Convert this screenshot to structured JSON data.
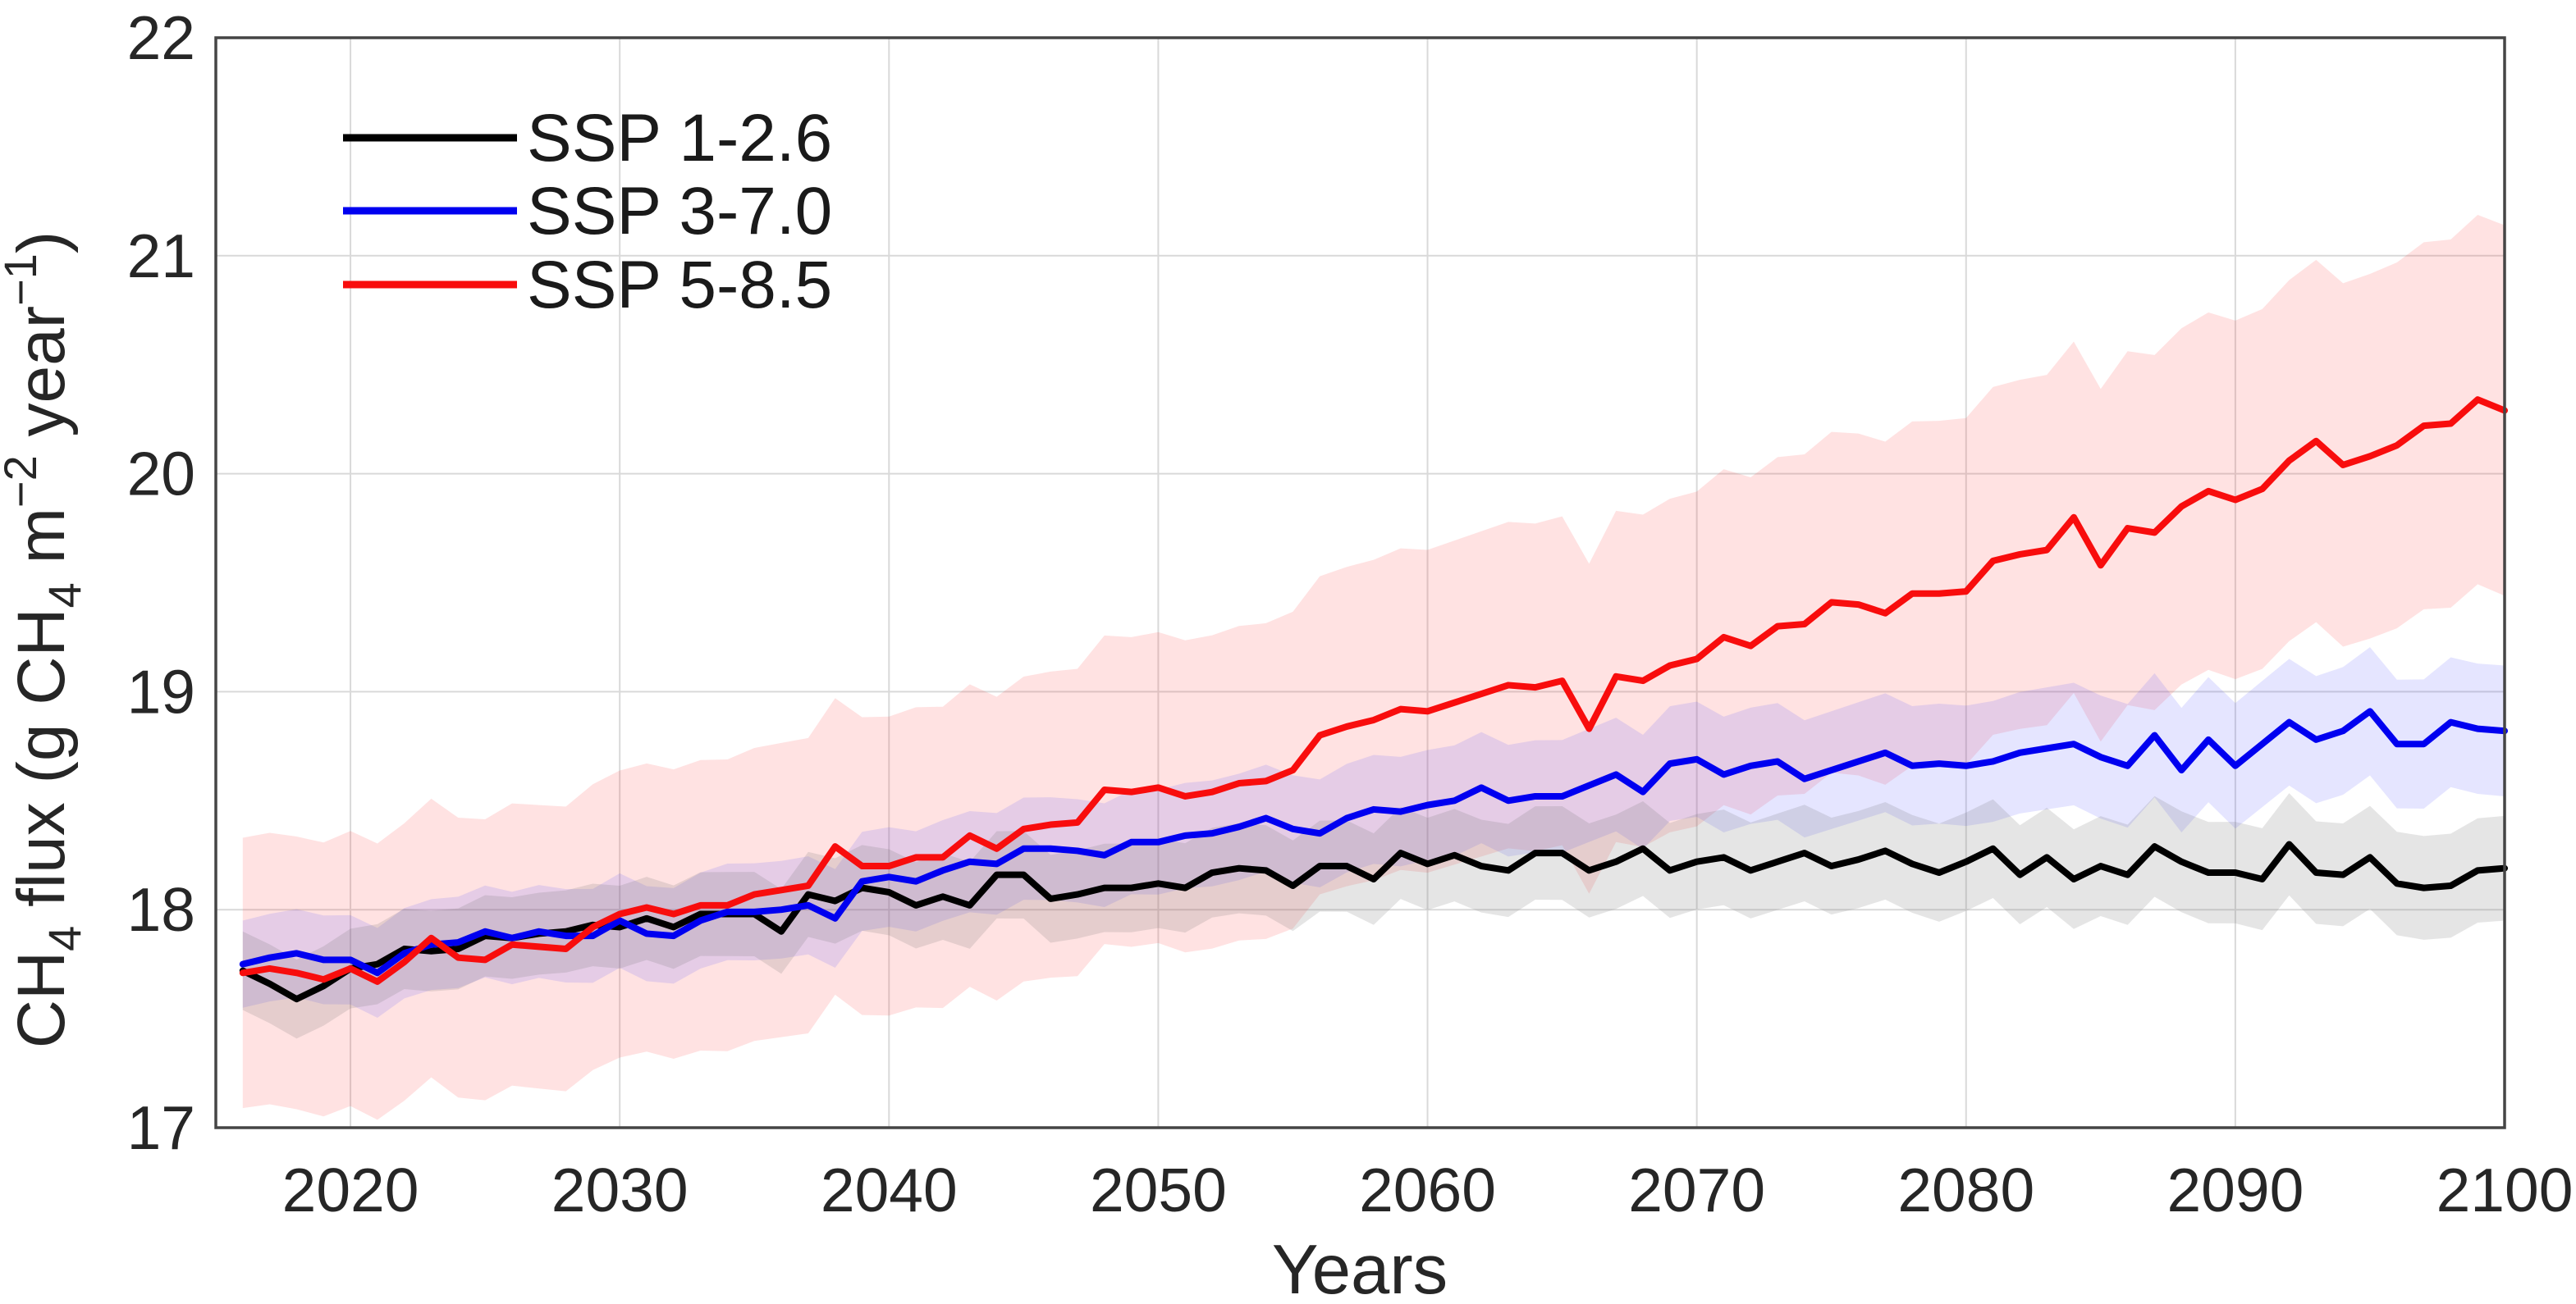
{
  "chart_data": {
    "type": "line",
    "title": "",
    "xlabel": "Years",
    "ylabel_plain": "CH4 flux (g CH4 m-2 year-1)",
    "ylabel_parts": [
      {
        "t": "CH"
      },
      {
        "t": "4",
        "style": "sub"
      },
      {
        "t": " flux (g CH"
      },
      {
        "t": "4",
        "style": "sub"
      },
      {
        "t": " m"
      },
      {
        "t": "−2",
        "style": "sup"
      },
      {
        "t": " year"
      },
      {
        "t": "−1",
        "style": "sup"
      },
      {
        "t": ")"
      }
    ],
    "xlim": [
      2015,
      2100
    ],
    "ylim": [
      17,
      22
    ],
    "xticks": [
      2020,
      2030,
      2040,
      2050,
      2060,
      2070,
      2080,
      2090,
      2100
    ],
    "yticks": [
      17,
      18,
      19,
      20,
      21,
      22
    ],
    "grid": true,
    "legend_position": "top-left-inside",
    "start_year": 2016,
    "end_year": 2100,
    "colors": {
      "grid": "#d9d9d9",
      "axis_box": "#454545",
      "tick_text": "#262626"
    },
    "series": [
      {
        "name": "SSP 1-2.6",
        "color": "#000000",
        "band_color": "rgba(110,110,110,0.18)",
        "band_offset": [
          0.18,
          0.24
        ],
        "values": [
          17.72,
          17.66,
          17.59,
          17.65,
          17.73,
          17.75,
          17.82,
          17.81,
          17.82,
          17.88,
          17.87,
          17.89,
          17.9,
          17.93,
          17.92,
          17.96,
          17.92,
          17.98,
          17.98,
          17.98,
          17.9,
          18.07,
          18.04,
          18.1,
          18.08,
          18.02,
          18.06,
          18.02,
          18.16,
          18.16,
          18.05,
          18.07,
          18.1,
          18.1,
          18.12,
          18.1,
          18.17,
          18.19,
          18.18,
          18.11,
          18.2,
          18.2,
          18.14,
          18.26,
          18.21,
          18.25,
          18.2,
          18.18,
          18.26,
          18.26,
          18.18,
          18.22,
          18.28,
          18.18,
          18.22,
          18.24,
          18.18,
          18.22,
          18.26,
          18.2,
          18.23,
          18.27,
          18.21,
          18.17,
          18.22,
          18.28,
          18.16,
          18.24,
          18.14,
          18.2,
          18.16,
          18.29,
          18.22,
          18.17,
          18.17,
          18.14,
          18.3,
          18.17,
          18.16,
          18.24,
          18.12,
          18.1,
          18.11,
          18.18,
          18.19
        ]
      },
      {
        "name": "SSP 3-7.0",
        "color": "#0000f0",
        "band_color": "rgba(70,70,255,0.14)",
        "band_offset": [
          0.2,
          0.3
        ],
        "values": [
          17.75,
          17.78,
          17.8,
          17.77,
          17.77,
          17.71,
          17.8,
          17.84,
          17.85,
          17.9,
          17.87,
          17.9,
          17.88,
          17.88,
          17.95,
          17.89,
          17.88,
          17.95,
          17.99,
          17.99,
          18.0,
          18.02,
          17.96,
          18.13,
          18.15,
          18.13,
          18.18,
          18.22,
          18.21,
          18.28,
          18.28,
          18.27,
          18.25,
          18.31,
          18.31,
          18.34,
          18.35,
          18.38,
          18.42,
          18.37,
          18.35,
          18.42,
          18.46,
          18.45,
          18.48,
          18.5,
          18.56,
          18.5,
          18.52,
          18.52,
          18.57,
          18.62,
          18.54,
          18.67,
          18.69,
          18.62,
          18.66,
          18.68,
          18.6,
          18.64,
          18.68,
          18.72,
          18.66,
          18.67,
          18.66,
          18.68,
          18.72,
          18.74,
          18.76,
          18.7,
          18.66,
          18.8,
          18.64,
          18.78,
          18.66,
          18.76,
          18.86,
          18.78,
          18.82,
          18.91,
          18.76,
          18.76,
          18.86,
          18.83,
          18.82
        ]
      },
      {
        "name": "SSP 5-8.5",
        "color": "#f80d0d",
        "band_color": "rgba(255,30,30,0.13)",
        "band_offset": [
          0.62,
          0.85
        ],
        "values": [
          17.71,
          17.73,
          17.71,
          17.68,
          17.73,
          17.67,
          17.76,
          17.87,
          17.78,
          17.77,
          17.84,
          17.83,
          17.82,
          17.92,
          17.98,
          18.01,
          17.98,
          18.02,
          18.02,
          18.07,
          18.09,
          18.11,
          18.29,
          18.2,
          18.2,
          18.24,
          18.24,
          18.34,
          18.28,
          18.37,
          18.39,
          18.4,
          18.55,
          18.54,
          18.56,
          18.52,
          18.54,
          18.58,
          18.59,
          18.64,
          18.8,
          18.84,
          18.87,
          18.92,
          18.91,
          18.95,
          18.99,
          19.03,
          19.02,
          19.05,
          18.83,
          19.07,
          19.05,
          19.12,
          19.15,
          19.25,
          19.21,
          19.3,
          19.31,
          19.41,
          19.4,
          19.36,
          19.45,
          19.45,
          19.46,
          19.6,
          19.63,
          19.65,
          19.8,
          19.58,
          19.75,
          19.73,
          19.85,
          19.92,
          19.88,
          19.93,
          20.06,
          20.15,
          20.04,
          20.08,
          20.13,
          20.22,
          20.23,
          20.34,
          20.29
        ]
      }
    ]
  }
}
